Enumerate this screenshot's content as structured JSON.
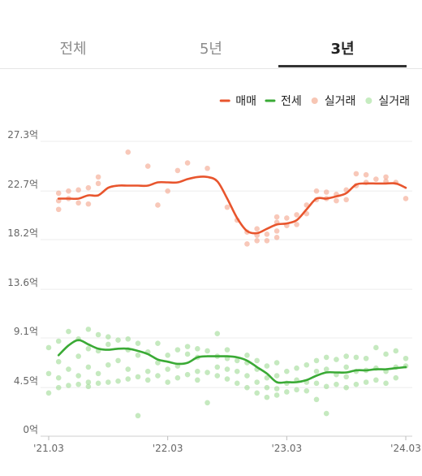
{
  "tabs": [
    {
      "label": "전체",
      "active": false
    },
    {
      "label": "5년",
      "active": false
    },
    {
      "label": "3년",
      "active": true
    }
  ],
  "chart_data": {
    "type": "line",
    "title": "",
    "xlabel": "",
    "ylabel": "",
    "legend_position": "top-right",
    "grid": true,
    "x_range": [
      "2021-03",
      "2024-03"
    ],
    "ylim": [
      0,
      27.3
    ],
    "y_ticks": [
      {
        "value": 0,
        "label": "0억"
      },
      {
        "value": 4.5,
        "label": "4.5억"
      },
      {
        "value": 9.1,
        "label": "9.1억"
      },
      {
        "value": 13.6,
        "label": "13.6억"
      },
      {
        "value": 18.2,
        "label": "18.2억"
      },
      {
        "value": 22.7,
        "label": "22.7억"
      },
      {
        "value": 27.3,
        "label": "27.3억"
      }
    ],
    "x_ticks": [
      {
        "value": "2021-03",
        "label": "'21.03"
      },
      {
        "value": "2022-03",
        "label": "'22.03"
      },
      {
        "value": "2023-03",
        "label": "'23.03"
      },
      {
        "value": "2024-03",
        "label": "'24.03"
      }
    ],
    "legend": [
      {
        "label": "매매",
        "kind": "line",
        "color": "#e8552d"
      },
      {
        "label": "전세",
        "kind": "line",
        "color": "#3aaa35"
      },
      {
        "label": "실거래",
        "kind": "dot",
        "color": "#f7c6b4"
      },
      {
        "label": "실거래",
        "kind": "dot",
        "color": "#c6ecc0"
      }
    ],
    "series": [
      {
        "name": "매매",
        "color": "#e8552d",
        "points": [
          [
            "2021-04",
            22.0
          ],
          [
            "2021-05",
            22.0
          ],
          [
            "2021-06",
            22.0
          ],
          [
            "2021-07",
            22.3
          ],
          [
            "2021-08",
            22.3
          ],
          [
            "2021-09",
            23.0
          ],
          [
            "2021-10",
            23.2
          ],
          [
            "2021-11",
            23.2
          ],
          [
            "2021-12",
            23.2
          ],
          [
            "2022-01",
            23.2
          ],
          [
            "2022-02",
            23.5
          ],
          [
            "2022-03",
            23.5
          ],
          [
            "2022-04",
            23.5
          ],
          [
            "2022-05",
            23.8
          ],
          [
            "2022-06",
            24.0
          ],
          [
            "2022-07",
            24.0
          ],
          [
            "2022-08",
            23.6
          ],
          [
            "2022-09",
            22.0
          ],
          [
            "2022-10",
            20.2
          ],
          [
            "2022-11",
            19.0
          ],
          [
            "2022-12",
            18.8
          ],
          [
            "2023-01",
            19.2
          ],
          [
            "2023-02",
            19.6
          ],
          [
            "2023-03",
            19.7
          ],
          [
            "2023-04",
            20.0
          ],
          [
            "2023-05",
            21.0
          ],
          [
            "2023-06",
            22.0
          ],
          [
            "2023-07",
            22.0
          ],
          [
            "2023-08",
            22.2
          ],
          [
            "2023-09",
            22.5
          ],
          [
            "2023-10",
            23.3
          ],
          [
            "2023-11",
            23.4
          ],
          [
            "2023-12",
            23.4
          ],
          [
            "2024-01",
            23.4
          ],
          [
            "2024-02",
            23.4
          ],
          [
            "2024-03",
            23.0
          ]
        ]
      },
      {
        "name": "전세",
        "color": "#3aaa35",
        "points": [
          [
            "2021-04",
            7.5
          ],
          [
            "2021-05",
            8.4
          ],
          [
            "2021-06",
            8.9
          ],
          [
            "2021-07",
            8.5
          ],
          [
            "2021-08",
            8.1
          ],
          [
            "2021-09",
            8.0
          ],
          [
            "2021-10",
            8.1
          ],
          [
            "2021-11",
            8.1
          ],
          [
            "2021-12",
            7.9
          ],
          [
            "2022-01",
            7.6
          ],
          [
            "2022-02",
            7.1
          ],
          [
            "2022-03",
            6.9
          ],
          [
            "2022-04",
            6.7
          ],
          [
            "2022-05",
            6.8
          ],
          [
            "2022-06",
            7.3
          ],
          [
            "2022-07",
            7.4
          ],
          [
            "2022-08",
            7.4
          ],
          [
            "2022-09",
            7.4
          ],
          [
            "2022-10",
            7.3
          ],
          [
            "2022-11",
            7.0
          ],
          [
            "2022-12",
            6.4
          ],
          [
            "2023-01",
            5.8
          ],
          [
            "2023-02",
            5.0
          ],
          [
            "2023-03",
            5.0
          ],
          [
            "2023-04",
            5.0
          ],
          [
            "2023-05",
            5.2
          ],
          [
            "2023-06",
            5.6
          ],
          [
            "2023-07",
            5.9
          ],
          [
            "2023-08",
            5.9
          ],
          [
            "2023-09",
            5.9
          ],
          [
            "2023-10",
            6.1
          ],
          [
            "2023-11",
            6.1
          ],
          [
            "2023-12",
            6.2
          ],
          [
            "2024-01",
            6.2
          ],
          [
            "2024-02",
            6.3
          ],
          [
            "2024-03",
            6.4
          ]
        ]
      }
    ],
    "scatter": [
      {
        "name": "실거래",
        "color": "#f4a48a",
        "points": [
          [
            "2021-04",
            21.0
          ],
          [
            "2021-04",
            21.8
          ],
          [
            "2021-04",
            22.5
          ],
          [
            "2021-05",
            22.0
          ],
          [
            "2021-05",
            22.7
          ],
          [
            "2021-06",
            21.6
          ],
          [
            "2021-06",
            22.8
          ],
          [
            "2021-07",
            21.5
          ],
          [
            "2021-07",
            23.0
          ],
          [
            "2021-08",
            23.4
          ],
          [
            "2021-08",
            24.0
          ],
          [
            "2021-11",
            26.3
          ],
          [
            "2022-01",
            25.0
          ],
          [
            "2022-02",
            21.4
          ],
          [
            "2022-03",
            22.7
          ],
          [
            "2022-04",
            24.6
          ],
          [
            "2022-05",
            25.3
          ],
          [
            "2022-07",
            24.8
          ],
          [
            "2022-09",
            21.2
          ],
          [
            "2022-10",
            20.0
          ],
          [
            "2022-11",
            17.8
          ],
          [
            "2022-11",
            18.9
          ],
          [
            "2022-12",
            18.1
          ],
          [
            "2022-12",
            18.6
          ],
          [
            "2022-12",
            19.2
          ],
          [
            "2023-01",
            18.1
          ],
          [
            "2023-01",
            18.7
          ],
          [
            "2023-02",
            18.4
          ],
          [
            "2023-02",
            19.0
          ],
          [
            "2023-02",
            19.8
          ],
          [
            "2023-02",
            20.3
          ],
          [
            "2023-03",
            19.5
          ],
          [
            "2023-03",
            20.2
          ],
          [
            "2023-04",
            19.6
          ],
          [
            "2023-04",
            20.5
          ],
          [
            "2023-05",
            20.6
          ],
          [
            "2023-05",
            21.4
          ],
          [
            "2023-06",
            21.9
          ],
          [
            "2023-06",
            22.7
          ],
          [
            "2023-07",
            22.0
          ],
          [
            "2023-07",
            22.6
          ],
          [
            "2023-08",
            21.8
          ],
          [
            "2023-08",
            22.4
          ],
          [
            "2023-09",
            22.8
          ],
          [
            "2023-09",
            21.9
          ],
          [
            "2023-10",
            23.2
          ],
          [
            "2023-10",
            24.3
          ],
          [
            "2023-11",
            24.2
          ],
          [
            "2023-11",
            23.5
          ],
          [
            "2023-12",
            23.8
          ],
          [
            "2024-01",
            23.6
          ],
          [
            "2024-01",
            24.0
          ],
          [
            "2024-02",
            23.5
          ],
          [
            "2024-03",
            22.0
          ]
        ]
      },
      {
        "name": "실거래",
        "color": "#9edb94",
        "points": [
          [
            "2021-03",
            4.0
          ],
          [
            "2021-03",
            5.8
          ],
          [
            "2021-03",
            8.2
          ],
          [
            "2021-04",
            4.5
          ],
          [
            "2021-04",
            5.4
          ],
          [
            "2021-04",
            6.9
          ],
          [
            "2021-04",
            8.8
          ],
          [
            "2021-05",
            4.7
          ],
          [
            "2021-05",
            6.2
          ],
          [
            "2021-05",
            9.7
          ],
          [
            "2021-06",
            4.8
          ],
          [
            "2021-06",
            5.6
          ],
          [
            "2021-06",
            7.4
          ],
          [
            "2021-06",
            9.0
          ],
          [
            "2021-07",
            4.6
          ],
          [
            "2021-07",
            5.0
          ],
          [
            "2021-07",
            6.4
          ],
          [
            "2021-07",
            8.1
          ],
          [
            "2021-07",
            9.9
          ],
          [
            "2021-08",
            4.9
          ],
          [
            "2021-08",
            5.8
          ],
          [
            "2021-08",
            7.9
          ],
          [
            "2021-08",
            9.4
          ],
          [
            "2021-09",
            5.0
          ],
          [
            "2021-09",
            6.6
          ],
          [
            "2021-09",
            8.5
          ],
          [
            "2021-09",
            9.2
          ],
          [
            "2021-10",
            5.1
          ],
          [
            "2021-10",
            7.0
          ],
          [
            "2021-10",
            8.9
          ],
          [
            "2021-11",
            5.3
          ],
          [
            "2021-11",
            6.2
          ],
          [
            "2021-11",
            8.0
          ],
          [
            "2021-11",
            9.0
          ],
          [
            "2021-12",
            1.9
          ],
          [
            "2021-12",
            5.5
          ],
          [
            "2021-12",
            7.5
          ],
          [
            "2021-12",
            8.6
          ],
          [
            "2022-01",
            5.2
          ],
          [
            "2022-01",
            6.0
          ],
          [
            "2022-01",
            7.8
          ],
          [
            "2022-02",
            5.6
          ],
          [
            "2022-02",
            6.8
          ],
          [
            "2022-02",
            8.6
          ],
          [
            "2022-03",
            5.0
          ],
          [
            "2022-03",
            6.2
          ],
          [
            "2022-03",
            7.5
          ],
          [
            "2022-04",
            5.4
          ],
          [
            "2022-04",
            6.5
          ],
          [
            "2022-04",
            8.0
          ],
          [
            "2022-05",
            5.7
          ],
          [
            "2022-05",
            7.6
          ],
          [
            "2022-05",
            8.3
          ],
          [
            "2022-06",
            5.2
          ],
          [
            "2022-06",
            6.0
          ],
          [
            "2022-06",
            7.3
          ],
          [
            "2022-06",
            8.1
          ],
          [
            "2022-07",
            3.1
          ],
          [
            "2022-07",
            5.9
          ],
          [
            "2022-07",
            7.9
          ],
          [
            "2022-08",
            5.6
          ],
          [
            "2022-08",
            6.4
          ],
          [
            "2022-08",
            7.4
          ],
          [
            "2022-08",
            9.5
          ],
          [
            "2022-09",
            5.3
          ],
          [
            "2022-09",
            6.2
          ],
          [
            "2022-09",
            7.2
          ],
          [
            "2022-09",
            8.0
          ],
          [
            "2022-10",
            4.9
          ],
          [
            "2022-10",
            6.0
          ],
          [
            "2022-10",
            7.0
          ],
          [
            "2022-11",
            4.5
          ],
          [
            "2022-11",
            5.6
          ],
          [
            "2022-11",
            6.8
          ],
          [
            "2022-11",
            7.5
          ],
          [
            "2022-12",
            4.0
          ],
          [
            "2022-12",
            5.0
          ],
          [
            "2022-12",
            6.2
          ],
          [
            "2022-12",
            7.0
          ],
          [
            "2023-01",
            3.6
          ],
          [
            "2023-01",
            4.5
          ],
          [
            "2023-01",
            5.4
          ],
          [
            "2023-01",
            6.5
          ],
          [
            "2023-02",
            3.8
          ],
          [
            "2023-02",
            4.4
          ],
          [
            "2023-02",
            5.6
          ],
          [
            "2023-02",
            6.8
          ],
          [
            "2023-03",
            4.1
          ],
          [
            "2023-03",
            4.9
          ],
          [
            "2023-03",
            6.0
          ],
          [
            "2023-04",
            4.3
          ],
          [
            "2023-04",
            5.2
          ],
          [
            "2023-04",
            6.3
          ],
          [
            "2023-05",
            4.2
          ],
          [
            "2023-05",
            5.0
          ],
          [
            "2023-05",
            6.6
          ],
          [
            "2023-06",
            3.4
          ],
          [
            "2023-06",
            4.9
          ],
          [
            "2023-06",
            6.0
          ],
          [
            "2023-06",
            7.0
          ],
          [
            "2023-07",
            2.1
          ],
          [
            "2023-07",
            4.6
          ],
          [
            "2023-07",
            6.2
          ],
          [
            "2023-07",
            7.3
          ],
          [
            "2023-08",
            4.8
          ],
          [
            "2023-08",
            5.7
          ],
          [
            "2023-08",
            7.1
          ],
          [
            "2023-09",
            4.5
          ],
          [
            "2023-09",
            5.5
          ],
          [
            "2023-09",
            6.4
          ],
          [
            "2023-09",
            7.4
          ],
          [
            "2023-10",
            4.8
          ],
          [
            "2023-10",
            6.0
          ],
          [
            "2023-10",
            7.3
          ],
          [
            "2023-11",
            5.0
          ],
          [
            "2023-11",
            6.1
          ],
          [
            "2023-11",
            7.2
          ],
          [
            "2023-12",
            5.2
          ],
          [
            "2023-12",
            6.3
          ],
          [
            "2023-12",
            8.2
          ],
          [
            "2024-01",
            4.9
          ],
          [
            "2024-01",
            6.0
          ],
          [
            "2024-01",
            7.6
          ],
          [
            "2024-02",
            5.4
          ],
          [
            "2024-02",
            6.4
          ],
          [
            "2024-02",
            7.9
          ],
          [
            "2024-03",
            6.5
          ],
          [
            "2024-03",
            7.2
          ]
        ]
      }
    ]
  }
}
